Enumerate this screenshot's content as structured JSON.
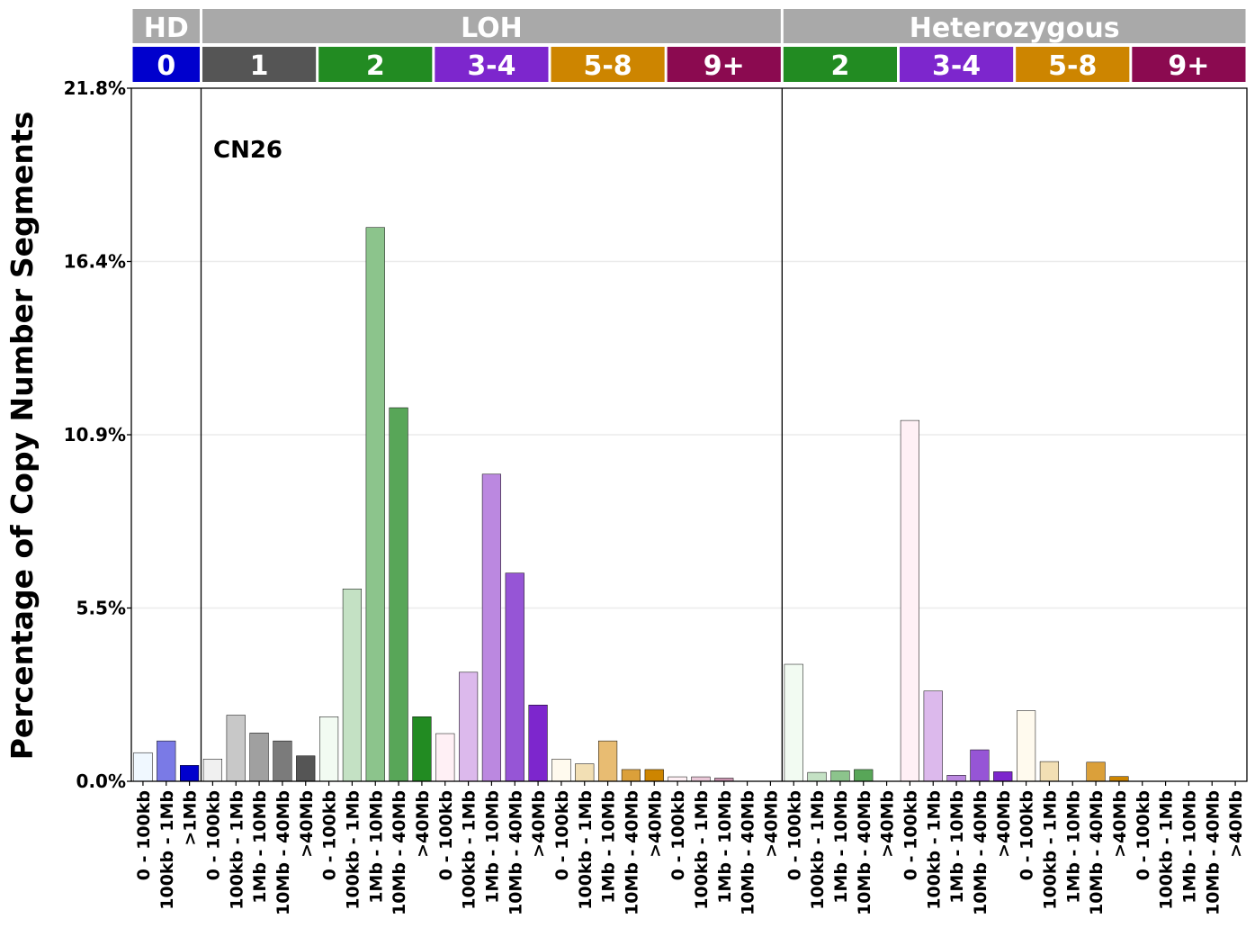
{
  "chart_data": {
    "type": "bar",
    "ylabel": "Percentage of Copy Number Segments",
    "ylim": [
      0,
      21.8
    ],
    "yticks": [
      "0.0%",
      "5.5%",
      "10.9%",
      "16.4%",
      "21.8%"
    ],
    "ytick_values": [
      0,
      5.45,
      10.9,
      16.35,
      21.8
    ],
    "annotation": "CN26",
    "grid": true,
    "top_groups": [
      {
        "label": "HD",
        "span": 3
      },
      {
        "label": "LOH",
        "span": 25
      },
      {
        "label": "Heterozygous",
        "span": 20
      }
    ],
    "sub_groups": [
      {
        "label": "0",
        "color": "#0000cd",
        "span": 3
      },
      {
        "label": "1",
        "color": "#555555",
        "span": 5
      },
      {
        "label": "2",
        "color": "#228b22",
        "span": 5
      },
      {
        "label": "3-4",
        "color": "#7d26cd",
        "span": 5
      },
      {
        "label": "5-8",
        "color": "#cd8500",
        "span": 5
      },
      {
        "label": "9+",
        "color": "#8b0a50",
        "span": 5
      },
      {
        "label": "2",
        "color": "#228b22",
        "span": 5
      },
      {
        "label": "3-4",
        "color": "#7d26cd",
        "span": 5
      },
      {
        "label": "5-8",
        "color": "#cd8500",
        "span": 5
      },
      {
        "label": "9+",
        "color": "#8b0a50",
        "span": 5
      }
    ],
    "header_color": "#a9a9a9",
    "categories": [
      "0 - 100kb",
      "100kb - 1Mb",
      ">1Mb",
      "0 - 100kb",
      "100kb - 1Mb",
      "1Mb - 10Mb",
      "10Mb - 40Mb",
      ">40Mb",
      "0 - 100kb",
      "100kb - 1Mb",
      "1Mb - 10Mb",
      "10Mb - 40Mb",
      ">40Mb",
      "0 - 100kb",
      "100kb - 1Mb",
      "1Mb - 10Mb",
      "10Mb - 40Mb",
      ">40Mb",
      "0 - 100kb",
      "100kb - 1Mb",
      "1Mb - 10Mb",
      "10Mb - 40Mb",
      ">40Mb",
      "0 - 100kb",
      "100kb - 1Mb",
      "1Mb - 10Mb",
      "10Mb - 40Mb",
      ">40Mb",
      "0 - 100kb",
      "100kb - 1Mb",
      "1Mb - 10Mb",
      "10Mb - 40Mb",
      ">40Mb",
      "0 - 100kb",
      "100kb - 1Mb",
      "1Mb - 10Mb",
      "10Mb - 40Mb",
      ">40Mb",
      "0 - 100kb",
      "100kb - 1Mb",
      "1Mb - 10Mb",
      "10Mb - 40Mb",
      ">40Mb",
      "0 - 100kb",
      "100kb - 1Mb",
      "1Mb - 10Mb",
      "10Mb - 40Mb",
      ">40Mb"
    ],
    "values": [
      0.9,
      1.27,
      0.5,
      0.7,
      2.08,
      1.52,
      1.27,
      0.8,
      2.03,
      6.05,
      17.42,
      11.75,
      2.03,
      1.5,
      3.43,
      9.66,
      6.55,
      2.4,
      0.7,
      0.55,
      1.27,
      0.37,
      0.37,
      0.14,
      0.14,
      0.1,
      0.0,
      0.0,
      3.68,
      0.28,
      0.33,
      0.37,
      0.0,
      11.35,
      2.84,
      0.19,
      0.99,
      0.3,
      2.22,
      0.62,
      0.0,
      0.6,
      0.15,
      0.0,
      0.0,
      0.0,
      0.0,
      0.0
    ],
    "bar_colors": [
      "#f0f8ff",
      "#7a7ae6",
      "#0000cd",
      "#f0f0f0",
      "#c8c8c8",
      "#a0a0a0",
      "#7b7b7b",
      "#555555",
      "#f2fbf2",
      "#c4e1c4",
      "#8cc48c",
      "#58a658",
      "#228b22",
      "#fff0f5",
      "#dcb9ec",
      "#bb88e0",
      "#9655d6",
      "#7d26cd",
      "#fffaee",
      "#f2dfb4",
      "#e8bc72",
      "#dba03a",
      "#cd8500",
      "#fff0f5",
      "#eac8d8",
      "#c892ae",
      "#a5527c",
      "#8b0a50",
      "#f2fbf2",
      "#c4e1c4",
      "#8cc48c",
      "#58a658",
      "#228b22",
      "#fff0f5",
      "#dcb9ec",
      "#bb88e0",
      "#9655d6",
      "#7d26cd",
      "#fffaee",
      "#f2dfb4",
      "#e8bc72",
      "#dba03a",
      "#cd8500",
      "#fff0f5",
      "#eac8d8",
      "#c892ae",
      "#a5527c",
      "#8b0a50"
    ]
  }
}
